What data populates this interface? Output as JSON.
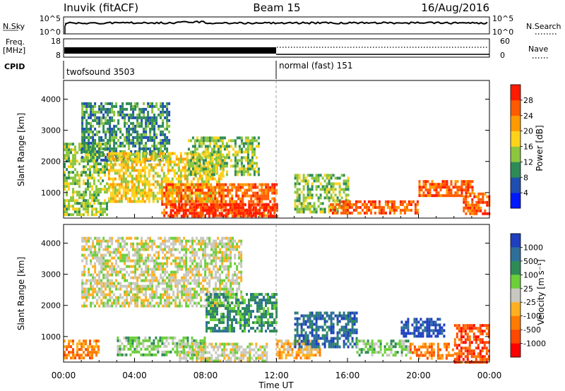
{
  "header": {
    "station": "Inuvik (fitACF)",
    "beam": "Beam 15",
    "date": "16/Aug/2016"
  },
  "noise_panel": {
    "left_label": "N.Sky",
    "right_label": "N.Search",
    "tick_top": "10^5",
    "tick_bottom": "10^0",
    "right_tick_top": "10^5",
    "right_tick_bottom": "10^0"
  },
  "freq_panel": {
    "left_label_1": "Freq.",
    "left_label_2": "[MHz]",
    "tick_top": "18",
    "tick_bottom": "8",
    "right_label": "Nave",
    "right_tick_top": "60",
    "right_tick_bottom": "0"
  },
  "cpid_panel": {
    "label": "CPID",
    "modes": [
      {
        "name": "twofsound 3503",
        "start_hour": 0
      },
      {
        "name": "normal (fast) 151",
        "start_hour": 12
      }
    ]
  },
  "chart_data": [
    {
      "type": "heatmap",
      "quantity": "Power",
      "ylabel": "Slant Range [km]",
      "yticks": [
        1000,
        2000,
        3000,
        4000
      ],
      "ylim": [
        180,
        4600
      ],
      "xlim": [
        0,
        24
      ],
      "colorbar_label": "Power [dB]",
      "colorbar_ticks": [
        "4",
        "8",
        "12",
        "16",
        "20",
        "24",
        "28"
      ],
      "colorbar_colors": [
        "#0018ff",
        "#1e4fb0",
        "#2e8b57",
        "#8cc63f",
        "#ffd21a",
        "#ff9a00",
        "#ff5a00",
        "#ff1a00"
      ],
      "regions": [
        {
          "t0": 0.0,
          "t1": 2.5,
          "r0": 300,
          "r1": 2600,
          "level": 3
        },
        {
          "t0": 1.0,
          "t1": 6.0,
          "r0": 2000,
          "r1": 3900,
          "level": 2
        },
        {
          "t0": 2.5,
          "t1": 9.0,
          "r0": 700,
          "r1": 2300,
          "level": 4
        },
        {
          "t0": 5.5,
          "t1": 12.0,
          "r0": 250,
          "r1": 1300,
          "level": 6
        },
        {
          "t0": 6.0,
          "t1": 12.0,
          "r0": 250,
          "r1": 650,
          "level": 7
        },
        {
          "t0": 7.0,
          "t1": 11.0,
          "r0": 1600,
          "r1": 2800,
          "level": 3
        },
        {
          "t0": 13.0,
          "t1": 16.0,
          "r0": 400,
          "r1": 1600,
          "level": 3
        },
        {
          "t0": 15.0,
          "t1": 20.0,
          "r0": 350,
          "r1": 750,
          "level": 6
        },
        {
          "t0": 20.0,
          "t1": 23.0,
          "r0": 900,
          "r1": 1400,
          "level": 6
        },
        {
          "t0": 22.5,
          "t1": 24.0,
          "r0": 300,
          "r1": 1000,
          "level": 6
        }
      ]
    },
    {
      "type": "heatmap",
      "quantity": "Velocity",
      "ylabel": "Slant Range [km]",
      "xlabel": "Time UT",
      "yticks": [
        1000,
        2000,
        3000,
        4000
      ],
      "ylim": [
        180,
        4600
      ],
      "xlim": [
        0,
        24
      ],
      "xtick_labels": [
        "00:00",
        "04:00",
        "08:00",
        "12:00",
        "16:00",
        "20:00",
        "00:00"
      ],
      "xticks": [
        0,
        4,
        8,
        12,
        16,
        20,
        24
      ],
      "colorbar_label": "Velocity [m s⁻¹]",
      "colorbar_ticks": [
        "1000",
        "500",
        "100",
        "25",
        "-25",
        "-100",
        "-500",
        "-1000"
      ],
      "colorbar_colors": [
        "#1f3fbf",
        "#2e6f9a",
        "#2e8b57",
        "#6ccf3a",
        "#c8c8c0",
        "#ffb020",
        "#ff7a00",
        "#ff4800",
        "#ff0000"
      ],
      "regions": [
        {
          "t0": 1.0,
          "t1": 10.0,
          "r0": 2000,
          "r1": 4200,
          "level": 4
        },
        {
          "t0": 0.0,
          "t1": 2.0,
          "r0": 300,
          "r1": 900,
          "level": 6
        },
        {
          "t0": 3.0,
          "t1": 8.0,
          "r0": 400,
          "r1": 1000,
          "level": 3
        },
        {
          "t0": 6.5,
          "t1": 11.5,
          "r0": 250,
          "r1": 800,
          "level": 4
        },
        {
          "t0": 8.0,
          "t1": 12.0,
          "r0": 1200,
          "r1": 2400,
          "level": 2
        },
        {
          "t0": 12.0,
          "t1": 14.5,
          "r0": 300,
          "r1": 900,
          "level": 5
        },
        {
          "t0": 13.0,
          "t1": 16.5,
          "r0": 700,
          "r1": 1800,
          "level": 1
        },
        {
          "t0": 16.5,
          "t1": 19.5,
          "r0": 400,
          "r1": 900,
          "level": 3
        },
        {
          "t0": 19.0,
          "t1": 21.5,
          "r0": 1000,
          "r1": 1600,
          "level": 0
        },
        {
          "t0": 19.5,
          "t1": 22.0,
          "r0": 300,
          "r1": 800,
          "level": 6
        },
        {
          "t0": 22.0,
          "t1": 24.0,
          "r0": 200,
          "r1": 1400,
          "level": 7
        }
      ]
    }
  ]
}
